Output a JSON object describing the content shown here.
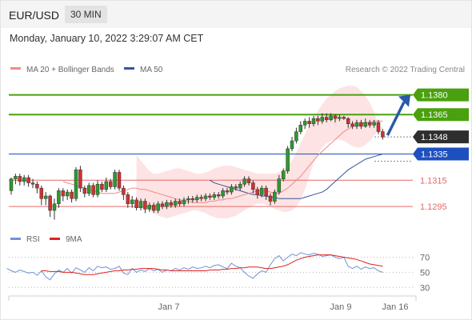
{
  "header": {
    "symbol": "EUR/USD",
    "timeframe": "30 MIN",
    "timestamp": "Monday, January 10, 2022 3:29:07 AM CET",
    "credit": "Research © 2022 Trading Central"
  },
  "colors": {
    "support": "#e46a6a",
    "resistance": "#4aa00e",
    "pivot": "#1e4fbf",
    "last_price": "#2e2e2e",
    "ma20": "#f08a8a",
    "ma50": "#35559a",
    "bollinger": "#fde3e3",
    "arrow": "#2a5aa6",
    "rsi": "#6f93d6",
    "rsi_ma": "#e02020"
  },
  "chart_data": {
    "type": "line",
    "title": "",
    "ylim": [
      1.1278,
      1.1395
    ],
    "legend": [
      {
        "name": "MA 20 + Bollinger Bands",
        "color": "#f08a8a"
      },
      {
        "name": "MA 50",
        "color": "#35559a"
      }
    ],
    "x_ticks": [
      "Jan 7",
      "Jan 9",
      "Jan 16"
    ],
    "levels": [
      {
        "label": "1.1380",
        "value": 1.138,
        "kind": "resistance"
      },
      {
        "label": "1.1365",
        "value": 1.1365,
        "kind": "resistance"
      },
      {
        "label": "1.1348",
        "value": 1.1348,
        "kind": "last"
      },
      {
        "label": "1.1335",
        "value": 1.1335,
        "kind": "pivot"
      },
      {
        "label": "1.1315",
        "value": 1.1315,
        "kind": "support"
      },
      {
        "label": "1.1295",
        "value": 1.1295,
        "kind": "support"
      }
    ],
    "candles": [
      [
        1.1307,
        1.1316,
        1.1317,
        1.1304
      ],
      [
        1.1316,
        1.1318,
        1.132,
        1.1312
      ],
      [
        1.1318,
        1.1314,
        1.132,
        1.1311
      ],
      [
        1.1314,
        1.1317,
        1.1319,
        1.1311
      ],
      [
        1.1317,
        1.1313,
        1.1319,
        1.131
      ],
      [
        1.1313,
        1.1312,
        1.1316,
        1.1309
      ],
      [
        1.1312,
        1.1309,
        1.1314,
        1.1305
      ],
      [
        1.1309,
        1.1301,
        1.1311,
        1.1296
      ],
      [
        1.1301,
        1.1303,
        1.1306,
        1.1296
      ],
      [
        1.1303,
        1.1292,
        1.1304,
        1.1287
      ],
      [
        1.1292,
        1.1297,
        1.1301,
        1.1285
      ],
      [
        1.1297,
        1.1307,
        1.1309,
        1.1294
      ],
      [
        1.1307,
        1.1303,
        1.1309,
        1.1299
      ],
      [
        1.1303,
        1.1306,
        1.1308,
        1.13
      ],
      [
        1.1306,
        1.1301,
        1.1308,
        1.1298
      ],
      [
        1.1301,
        1.1323,
        1.1325,
        1.1299
      ],
      [
        1.1323,
        1.1309,
        1.1326,
        1.1306
      ],
      [
        1.1309,
        1.1305,
        1.1311,
        1.1302
      ],
      [
        1.1305,
        1.1311,
        1.1313,
        1.1303
      ],
      [
        1.1311,
        1.1304,
        1.1313,
        1.1302
      ],
      [
        1.1304,
        1.1312,
        1.1315,
        1.1302
      ],
      [
        1.1312,
        1.1308,
        1.1314,
        1.1306
      ],
      [
        1.1308,
        1.1314,
        1.1317,
        1.1306
      ],
      [
        1.1314,
        1.131,
        1.1316,
        1.1308
      ],
      [
        1.131,
        1.1321,
        1.1323,
        1.1308
      ],
      [
        1.1321,
        1.1309,
        1.1323,
        1.1307
      ],
      [
        1.1309,
        1.1304,
        1.1311,
        1.13
      ],
      [
        1.1304,
        1.1297,
        1.1306,
        1.1294
      ],
      [
        1.1297,
        1.13,
        1.1303,
        1.1294
      ],
      [
        1.13,
        1.1294,
        1.1302,
        1.1292
      ],
      [
        1.1294,
        1.1299,
        1.1301,
        1.1292
      ],
      [
        1.1299,
        1.1293,
        1.1301,
        1.129
      ],
      [
        1.1293,
        1.1296,
        1.1298,
        1.1291
      ],
      [
        1.1296,
        1.1292,
        1.1298,
        1.129
      ],
      [
        1.1292,
        1.1297,
        1.1299,
        1.129
      ],
      [
        1.1297,
        1.1295,
        1.1299,
        1.1293
      ],
      [
        1.1295,
        1.1298,
        1.13,
        1.1293
      ],
      [
        1.1298,
        1.1296,
        1.13,
        1.1294
      ],
      [
        1.1296,
        1.1299,
        1.1301,
        1.1294
      ],
      [
        1.1299,
        1.1297,
        1.1301,
        1.1295
      ],
      [
        1.1297,
        1.13,
        1.1302,
        1.1295
      ],
      [
        1.13,
        1.1301,
        1.1303,
        1.1297
      ],
      [
        1.1301,
        1.13,
        1.1303,
        1.1298
      ],
      [
        1.13,
        1.1302,
        1.1304,
        1.1298
      ],
      [
        1.1302,
        1.1301,
        1.1304,
        1.1299
      ],
      [
        1.1301,
        1.1303,
        1.1305,
        1.1299
      ],
      [
        1.1303,
        1.1302,
        1.1305,
        1.13
      ],
      [
        1.1302,
        1.1304,
        1.1306,
        1.13
      ],
      [
        1.1304,
        1.1303,
        1.1306,
        1.1301
      ],
      [
        1.1303,
        1.1307,
        1.1309,
        1.1301
      ],
      [
        1.1307,
        1.1306,
        1.1309,
        1.1304
      ],
      [
        1.1306,
        1.131,
        1.1312,
        1.1304
      ],
      [
        1.131,
        1.1309,
        1.1312,
        1.1307
      ],
      [
        1.1309,
        1.1312,
        1.1314,
        1.1307
      ],
      [
        1.1312,
        1.1316,
        1.1318,
        1.131
      ],
      [
        1.1316,
        1.1313,
        1.1318,
        1.1311
      ],
      [
        1.1313,
        1.1308,
        1.1315,
        1.1305
      ],
      [
        1.1308,
        1.1304,
        1.131,
        1.1301
      ],
      [
        1.1304,
        1.1309,
        1.1311,
        1.1302
      ],
      [
        1.1309,
        1.1303,
        1.1311,
        1.13
      ],
      [
        1.1303,
        1.1299,
        1.1305,
        1.1296
      ],
      [
        1.1299,
        1.1306,
        1.1308,
        1.1297
      ],
      [
        1.1306,
        1.1316,
        1.1319,
        1.1304
      ],
      [
        1.1316,
        1.1322,
        1.1324,
        1.1314
      ],
      [
        1.1322,
        1.1339,
        1.1341,
        1.132
      ],
      [
        1.1339,
        1.1345,
        1.1348,
        1.1337
      ],
      [
        1.1345,
        1.1352,
        1.1355,
        1.1343
      ],
      [
        1.1352,
        1.1357,
        1.136,
        1.135
      ],
      [
        1.1357,
        1.136,
        1.1362,
        1.1354
      ],
      [
        1.136,
        1.1358,
        1.1363,
        1.1355
      ],
      [
        1.1358,
        1.1362,
        1.1364,
        1.1356
      ],
      [
        1.1362,
        1.136,
        1.1364,
        1.1357
      ],
      [
        1.136,
        1.1363,
        1.1366,
        1.1358
      ],
      [
        1.1363,
        1.1361,
        1.1366,
        1.1359
      ],
      [
        1.1361,
        1.1364,
        1.1366,
        1.136
      ],
      [
        1.1364,
        1.1362,
        1.1365,
        1.1359
      ],
      [
        1.1362,
        1.1363,
        1.1365,
        1.136
      ],
      [
        1.1363,
        1.1362,
        1.1364,
        1.1361
      ],
      [
        1.1362,
        1.1358,
        1.1363,
        1.1355
      ],
      [
        1.1358,
        1.1356,
        1.136,
        1.1354
      ],
      [
        1.1356,
        1.1359,
        1.1361,
        1.1354
      ],
      [
        1.1359,
        1.1356,
        1.1361,
        1.1354
      ],
      [
        1.1356,
        1.1359,
        1.1362,
        1.1355
      ],
      [
        1.1359,
        1.1357,
        1.1361,
        1.1355
      ],
      [
        1.1357,
        1.1359,
        1.1361,
        1.1355
      ],
      [
        1.1359,
        1.1352,
        1.1361,
        1.135
      ],
      [
        1.1352,
        1.1348,
        1.1354,
        1.1346
      ]
    ],
    "ma20": [
      1.1314,
      1.1313,
      1.1312,
      1.1311,
      1.131,
      1.1309,
      1.1308,
      1.1307,
      1.1306,
      1.1305,
      1.1305,
      1.1305,
      1.1305,
      1.1306,
      1.1307,
      1.1308,
      1.1309,
      1.1309,
      1.1308,
      1.1308,
      1.1307,
      1.1306,
      1.1305,
      1.1304,
      1.1303,
      1.1302,
      1.1301,
      1.13,
      1.1299,
      1.1299,
      1.1298,
      1.1298,
      1.1298,
      1.1298,
      1.1299,
      1.1299,
      1.13,
      1.13,
      1.1301,
      1.1301,
      1.1302,
      1.1303,
      1.1304,
      1.1305,
      1.1306,
      1.1307,
      1.1307,
      1.1307,
      1.1306,
      1.1305,
      1.1305,
      1.1307,
      1.1309,
      1.1312,
      1.1315,
      1.1318,
      1.1322,
      1.1326,
      1.133,
      1.1334,
      1.1337,
      1.134,
      1.1343,
      1.1346,
      1.1349,
      1.1352,
      1.1354,
      1.1356,
      1.1357,
      1.1358,
      1.1359,
      1.1359,
      1.136,
      1.136,
      1.136
    ],
    "bb_upper": [
      1.1334,
      1.133,
      1.1326,
      1.1322,
      1.132,
      1.132,
      1.1321,
      1.1322,
      1.1323,
      1.1324,
      1.1324,
      1.1323,
      1.1322,
      1.1321,
      1.132,
      1.132,
      1.1321,
      1.1322,
      1.1324,
      1.1325,
      1.1326,
      1.1326,
      1.1326,
      1.1325,
      1.1324,
      1.1323,
      1.1322,
      1.1321,
      1.132,
      1.132,
      1.132,
      1.132,
      1.132,
      1.1321,
      1.1323,
      1.1326,
      1.133,
      1.1336,
      1.1343,
      1.135,
      1.1357,
      1.1363,
      1.1368,
      1.1373,
      1.1377,
      1.138,
      1.1383,
      1.1385,
      1.1386,
      1.1387,
      1.1387,
      1.1386,
      1.1383,
      1.1379,
      1.1374,
      1.1367,
      1.1358,
      1.1345
    ],
    "bb_lower": [
      1.1298,
      1.1296,
      1.1294,
      1.1292,
      1.129,
      1.1288,
      1.1287,
      1.1286,
      1.1287,
      1.1288,
      1.1289,
      1.129,
      1.1291,
      1.1292,
      1.1292,
      1.1291,
      1.129,
      1.1288,
      1.1287,
      1.1286,
      1.1286,
      1.1286,
      1.1287,
      1.1288,
      1.129,
      1.1292,
      1.1294,
      1.1296,
      1.1297,
      1.1297,
      1.1296,
      1.1295,
      1.1293,
      1.1292,
      1.1291,
      1.1291,
      1.1292,
      1.1295,
      1.13,
      1.1308,
      1.1318,
      1.1328,
      1.1335,
      1.134,
      1.1343,
      1.1345,
      1.1346,
      1.1346,
      1.1345,
      1.1343,
      1.1341,
      1.134,
      1.134,
      1.1342,
      1.1345,
      1.1349,
      1.1353,
      1.1357
    ],
    "ma50": [
      1.1315,
      1.1313,
      1.1312,
      1.1311,
      1.131,
      1.1309,
      1.1308,
      1.1307,
      1.1306,
      1.1305,
      1.1304,
      1.1304,
      1.1303,
      1.1303,
      1.1302,
      1.1302,
      1.1301,
      1.1301,
      1.1301,
      1.1301,
      1.1301,
      1.1301,
      1.1302,
      1.1303,
      1.1304,
      1.1305,
      1.1306,
      1.1308,
      1.1311,
      1.1314,
      1.1317,
      1.132,
      1.1323,
      1.1325,
      1.1327,
      1.1329,
      1.1331,
      1.1332,
      1.1333,
      1.1334,
      1.1335
    ],
    "projection_arrow": {
      "from": 1.1348,
      "to": 1.138
    },
    "rsi": {
      "legend": [
        {
          "name": "RSI",
          "color": "#6f93d6"
        },
        {
          "name": "9MA",
          "color": "#e02020"
        }
      ],
      "ylim": [
        25,
        80
      ],
      "ticks": [
        "70",
        "50",
        "30"
      ],
      "rsi_values": [
        55,
        52,
        50,
        53,
        51,
        49,
        50,
        46,
        52,
        44,
        40,
        48,
        53,
        50,
        55,
        49,
        56,
        53,
        50,
        56,
        52,
        58,
        56,
        57,
        54,
        55,
        58,
        49,
        47,
        55,
        50,
        53,
        51,
        55,
        52,
        54,
        50,
        53,
        52,
        55,
        53,
        56,
        54,
        57,
        55,
        56,
        58,
        56,
        59,
        60,
        57,
        55,
        62,
        58,
        56,
        50,
        45,
        42,
        48,
        52,
        50,
        60,
        68,
        72,
        65,
        70,
        74,
        72,
        76,
        74,
        73,
        75,
        74,
        71,
        72,
        73,
        70,
        68,
        70,
        58,
        55,
        58,
        54,
        57,
        55,
        56,
        52,
        50
      ],
      "ma_values": [
        52,
        52,
        51,
        51,
        51,
        50,
        50,
        50,
        49,
        48,
        47,
        47,
        47,
        48,
        49,
        50,
        51,
        52,
        52,
        53,
        53,
        54,
        54,
        55,
        55,
        55,
        55,
        54,
        53,
        53,
        52,
        52,
        52,
        52,
        52,
        52,
        52,
        52,
        52,
        53,
        53,
        53,
        54,
        54,
        55,
        55,
        56,
        56,
        57,
        57,
        57,
        56,
        55,
        55,
        56,
        57,
        58,
        60,
        63,
        66,
        68,
        70,
        71,
        72,
        73,
        73,
        73,
        73,
        72,
        71,
        70,
        69,
        68,
        67,
        65,
        63,
        61,
        60,
        59,
        58
      ]
    }
  }
}
